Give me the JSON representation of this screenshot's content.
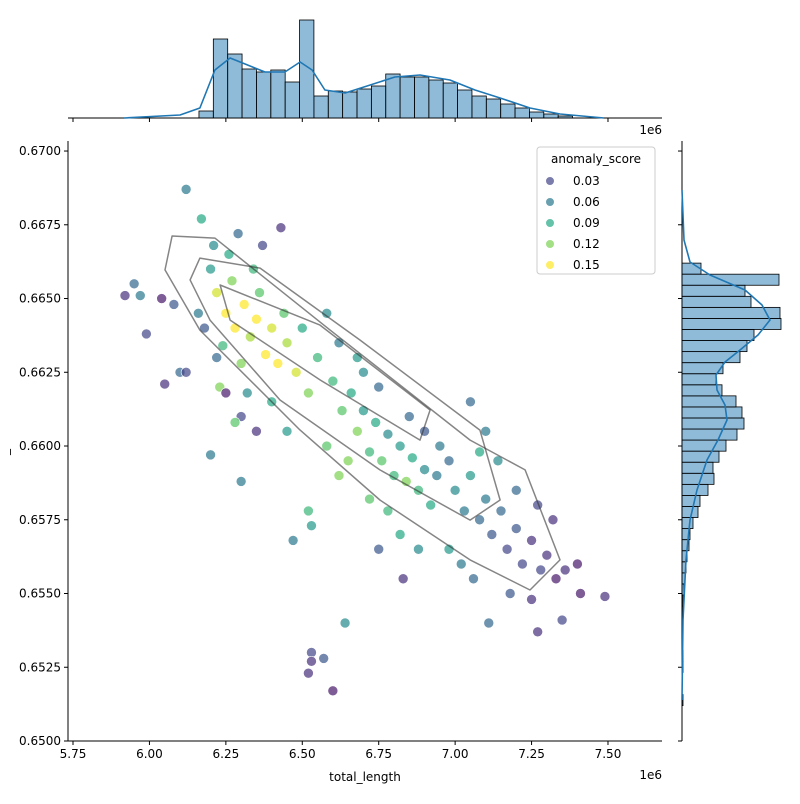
{
  "chart_data": [
    {
      "type": "scatter",
      "xlabel": "total_length",
      "ylabel": "_",
      "x_offset_text": "1e6",
      "xlim": [
        5.7336,
        7.6767
      ],
      "ylim": [
        0.65,
        0.67034
      ],
      "xticks": [
        5.75,
        {
          "value": 6.0,
          "label": "6.00"
        },
        6.25,
        {
          "value": 6.5,
          "label": "6.50"
        },
        6.75,
        {
          "value": 7.0,
          "label": "7.00"
        },
        7.25,
        {
          "value": 7.5,
          "label": "7.50"
        }
      ],
      "yticks": [
        {
          "value": 0.65,
          "label": "0.6500"
        },
        {
          "value": 0.6525,
          "label": "0.6525"
        },
        {
          "value": 0.655,
          "label": "0.6550"
        },
        {
          "value": 0.6575,
          "label": "0.6575"
        },
        {
          "value": 0.66,
          "label": "0.6600"
        },
        {
          "value": 0.6625,
          "label": "0.6625"
        },
        {
          "value": 0.665,
          "label": "0.6650"
        },
        {
          "value": 0.6675,
          "label": "0.6675"
        },
        {
          "value": 0.67,
          "label": "0.6700"
        }
      ],
      "legend": {
        "title": "anomaly_score",
        "position": "upper right",
        "levels": [
          {
            "value": 0.03,
            "label": "0.03"
          },
          {
            "value": 0.06,
            "label": "0.06"
          },
          {
            "value": 0.09,
            "label": "0.09"
          },
          {
            "value": 0.12,
            "label": "0.12"
          },
          {
            "value": 0.15,
            "label": "0.15"
          }
        ],
        "colors": [
          "#414487",
          "#2a788e",
          "#22a884",
          "#7ad151",
          "#fde725"
        ]
      },
      "contour_color": "#333333",
      "contours": [
        {
          "x": [
            6.074,
            6.214,
            6.591,
            7.049,
            7.229,
            7.343,
            7.245,
            7.049,
            6.754,
            6.493,
            6.165,
            6.051
          ],
          "y": [
            0.66712,
            0.66705,
            0.66393,
            0.6602,
            0.65919,
            0.65614,
            0.65512,
            0.65614,
            0.65817,
            0.66054,
            0.66393,
            0.66597
          ]
        },
        {
          "x": [
            6.165,
            6.362,
            6.689,
            7.081,
            7.147,
            7.049,
            6.754,
            6.427,
            6.198,
            6.133
          ],
          "y": [
            0.66637,
            0.66603,
            0.66359,
            0.66054,
            0.65817,
            0.65749,
            0.65919,
            0.66156,
            0.66427,
            0.66563
          ]
        },
        {
          "x": [
            6.231,
            6.558,
            6.918,
            6.885,
            6.558,
            6.264
          ],
          "y": [
            0.66546,
            0.6641,
            0.66122,
            0.6602,
            0.66224,
            0.66427
          ]
        }
      ],
      "x": [
        6.12,
        6.53,
        6.53,
        6.52,
        6.57,
        6.6,
        6.2,
        6.3,
        6.47,
        6.52,
        6.53,
        5.92,
        5.95,
        5.99,
        6.05,
        6.1,
        6.12,
        6.04,
        6.17,
        6.43,
        6.64,
        6.83,
        7.27,
        7.11,
        7.49,
        7.41,
        7.35,
        6.08,
        5.97,
        6.22,
        6.25,
        6.28,
        6.31,
        6.33,
        6.35,
        6.38,
        6.4,
        6.42,
        6.45,
        6.27,
        6.36,
        6.48,
        6.3,
        6.24,
        6.2,
        6.26,
        6.34,
        6.44,
        6.5,
        6.55,
        6.52,
        6.4,
        6.32,
        6.22,
        6.18,
        6.16,
        6.3,
        6.35,
        6.45,
        6.58,
        6.62,
        6.23,
        6.28,
        6.21,
        6.29,
        6.37,
        6.25,
        6.6,
        6.63,
        6.66,
        6.68,
        6.7,
        6.72,
        6.74,
        6.76,
        6.78,
        6.8,
        6.82,
        6.84,
        6.86,
        6.88,
        6.9,
        6.92,
        6.94,
        6.7,
        6.75,
        6.65,
        6.72,
        6.78,
        6.62,
        6.85,
        6.9,
        6.95,
        6.98,
        6.68,
        6.58,
        6.82,
        6.75,
        6.88,
        7.0,
        7.03,
        7.05,
        7.08,
        7.1,
        7.12,
        7.15,
        7.17,
        7.2,
        7.22,
        7.25,
        7.28,
        7.3,
        7.33,
        7.36,
        7.02,
        7.06,
        7.14,
        7.2,
        7.27,
        7.32,
        7.1,
        7.05,
        6.98,
        7.18,
        7.4,
        7.25,
        7.08
      ],
      "y": [
        0.6687,
        0.653,
        0.6527,
        0.6523,
        0.6528,
        0.6517,
        0.6597,
        0.6588,
        0.6568,
        0.6578,
        0.6573,
        0.6651,
        0.6655,
        0.6638,
        0.6621,
        0.6625,
        0.6625,
        0.665,
        0.6677,
        0.6674,
        0.654,
        0.6555,
        0.6537,
        0.654,
        0.6549,
        0.655,
        0.6541,
        0.6648,
        0.6651,
        0.6652,
        0.6645,
        0.664,
        0.6648,
        0.6637,
        0.6643,
        0.6631,
        0.664,
        0.6628,
        0.6635,
        0.6656,
        0.6652,
        0.6625,
        0.6628,
        0.6634,
        0.666,
        0.6665,
        0.666,
        0.6645,
        0.664,
        0.663,
        0.6618,
        0.6615,
        0.6618,
        0.663,
        0.664,
        0.6645,
        0.661,
        0.6605,
        0.6605,
        0.6645,
        0.6635,
        0.662,
        0.6608,
        0.6668,
        0.6672,
        0.6668,
        0.6618,
        0.6622,
        0.6612,
        0.6618,
        0.6605,
        0.6612,
        0.6598,
        0.6608,
        0.6595,
        0.6604,
        0.659,
        0.66,
        0.6588,
        0.6596,
        0.6585,
        0.6592,
        0.658,
        0.659,
        0.6625,
        0.662,
        0.6595,
        0.6582,
        0.6578,
        0.659,
        0.661,
        0.6605,
        0.66,
        0.6595,
        0.663,
        0.66,
        0.657,
        0.6565,
        0.6565,
        0.6585,
        0.6578,
        0.659,
        0.6575,
        0.6582,
        0.657,
        0.6578,
        0.6565,
        0.6572,
        0.656,
        0.6568,
        0.6558,
        0.6563,
        0.6555,
        0.6558,
        0.656,
        0.6555,
        0.6595,
        0.6585,
        0.658,
        0.6575,
        0.6605,
        0.6615,
        0.6565,
        0.655,
        0.656,
        0.6548,
        0.6598
      ],
      "hue": [
        0.06,
        0.03,
        0.02,
        0.02,
        0.04,
        0.01,
        0.06,
        0.06,
        0.06,
        0.1,
        0.08,
        0.02,
        0.05,
        0.03,
        0.02,
        0.05,
        0.03,
        0.01,
        0.09,
        0.02,
        0.07,
        0.02,
        0.02,
        0.05,
        0.02,
        0.01,
        0.03,
        0.04,
        0.06,
        0.14,
        0.15,
        0.16,
        0.15,
        0.13,
        0.16,
        0.15,
        0.14,
        0.16,
        0.13,
        0.12,
        0.11,
        0.14,
        0.12,
        0.1,
        0.08,
        0.09,
        0.1,
        0.11,
        0.09,
        0.1,
        0.12,
        0.09,
        0.07,
        0.05,
        0.04,
        0.06,
        0.03,
        0.02,
        0.08,
        0.07,
        0.06,
        0.12,
        0.11,
        0.07,
        0.05,
        0.03,
        0.01,
        0.1,
        0.11,
        0.09,
        0.12,
        0.08,
        0.1,
        0.09,
        0.11,
        0.07,
        0.1,
        0.08,
        0.12,
        0.09,
        0.1,
        0.07,
        0.09,
        0.06,
        0.07,
        0.05,
        0.12,
        0.11,
        0.1,
        0.12,
        0.05,
        0.04,
        0.06,
        0.05,
        0.08,
        0.11,
        0.09,
        0.04,
        0.07,
        0.07,
        0.06,
        0.08,
        0.05,
        0.06,
        0.04,
        0.05,
        0.03,
        0.04,
        0.03,
        0.02,
        0.03,
        0.02,
        0.01,
        0.02,
        0.06,
        0.05,
        0.07,
        0.05,
        0.03,
        0.02,
        0.06,
        0.05,
        0.08,
        0.04,
        0.01,
        0.02,
        0.09
      ]
    },
    {
      "type": "histogram",
      "orientation": "vertical",
      "color": "#1f77b4",
      "kde_color": "#1f77b4",
      "x_offset_text": "1e6",
      "xlim": [
        5.7336,
        7.6767
      ],
      "ylim": [
        0,
        103
      ],
      "xticks": [
        5.75,
        6.0,
        6.25,
        6.5,
        6.75,
        7.0,
        7.25,
        7.5
      ],
      "bins": [
        6.162,
        6.209,
        6.256,
        6.303,
        6.35,
        6.397,
        6.444,
        6.491,
        6.538,
        6.585,
        6.632,
        6.679,
        6.726,
        6.773,
        6.82,
        6.867,
        6.914,
        6.961,
        7.008,
        7.055,
        7.102,
        7.149,
        7.196,
        7.243,
        7.29,
        7.337,
        7.384
      ],
      "values": [
        7,
        79,
        64,
        49,
        46,
        48,
        36,
        98,
        22,
        27,
        26,
        29,
        32,
        44,
        41,
        41,
        38,
        35,
        28,
        22,
        19,
        14,
        10,
        6,
        4,
        2
      ],
      "kde": {
        "pos": [
          5.917,
          6.1,
          6.165,
          6.214,
          6.264,
          6.313,
          6.378,
          6.443,
          6.493,
          6.532,
          6.574,
          6.64,
          6.722,
          6.803,
          6.885,
          6.983,
          7.065,
          7.147,
          7.245,
          7.343,
          7.487
        ],
        "density": [
          0,
          3,
          10,
          48,
          60,
          54,
          46,
          46,
          56,
          48,
          28,
          25,
          33,
          41,
          43,
          38,
          28,
          20,
          10,
          4,
          0
        ]
      }
    },
    {
      "type": "histogram",
      "orientation": "horizontal",
      "color": "#1f77b4",
      "kde_color": "#1f77b4",
      "ylim": [
        0.65,
        0.67034
      ],
      "xlim": [
        0,
        108
      ],
      "yticks": [
        0.65,
        0.6525,
        0.655,
        0.6575,
        0.66,
        0.6625,
        0.665,
        0.6675,
        0.67
      ],
      "bins": [
        0.6512,
        0.651575,
        0.65195,
        0.652325,
        0.6527,
        0.653075,
        0.65345,
        0.653825,
        0.6542,
        0.654575,
        0.65495,
        0.655325,
        0.6557,
        0.656075,
        0.65645,
        0.656825,
        0.6572,
        0.657575,
        0.65795,
        0.658325,
        0.6587,
        0.659075,
        0.65945,
        0.659825,
        0.6602,
        0.660575,
        0.66095,
        0.661325,
        0.6617,
        0.662075,
        0.66245,
        0.662825,
        0.6632,
        0.663575,
        0.66395,
        0.664325,
        0.6647,
        0.665075,
        0.66545,
        0.665825,
        0.6662
      ],
      "values": [
        1,
        0,
        0,
        1,
        1,
        0,
        0,
        1,
        1,
        1,
        2,
        3,
        4,
        5,
        7,
        8,
        11,
        16,
        18,
        26,
        32,
        31,
        37,
        44,
        55,
        62,
        60,
        54,
        40,
        34,
        41,
        58,
        65,
        72,
        99,
        98,
        69,
        63,
        97,
        19
      ],
      "kde": {
        "pos": [
          0.668678,
          0.666983,
          0.666237,
          0.665797,
          0.665288,
          0.66478,
          0.664271,
          0.663763,
          0.663254,
          0.662847,
          0.662407,
          0.661898,
          0.66139,
          0.660881,
          0.660203,
          0.659525,
          0.658508,
          0.657492,
          0.656136,
          0.654102,
          0.65139
        ],
        "density": [
          0,
          2,
          8,
          28,
          63,
          80,
          88,
          76,
          58,
          43,
          34,
          35,
          43,
          45,
          36,
          25,
          15,
          8,
          4,
          1,
          0
        ]
      }
    }
  ]
}
